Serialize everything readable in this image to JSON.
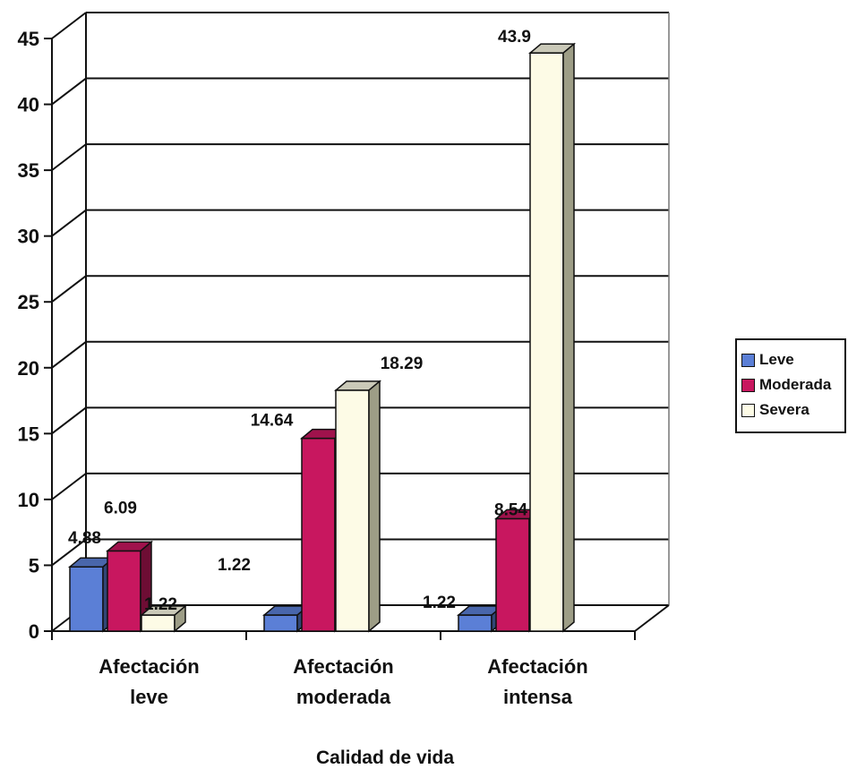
{
  "chart_data": {
    "type": "bar",
    "title": "",
    "xlabel": "Calidad de vida",
    "ylabel": "",
    "ylim": [
      0,
      45
    ],
    "yticks": [
      0,
      5,
      10,
      15,
      20,
      25,
      30,
      35,
      40,
      45
    ],
    "grid": true,
    "legend_position": "right",
    "categories": [
      [
        "Afectación",
        "leve"
      ],
      [
        "Afectación",
        "moderada"
      ],
      [
        "Afectación",
        "intensa"
      ]
    ],
    "series": [
      {
        "name": "Leve",
        "color": "#5b7fd6",
        "values": [
          4.88,
          1.22,
          1.22
        ],
        "labels": [
          "4.88",
          "1.22",
          "1.22"
        ]
      },
      {
        "name": "Moderada",
        "color": "#c8175f",
        "values": [
          6.09,
          14.64,
          8.54
        ],
        "labels": [
          "6.09",
          "14.64",
          "8.54"
        ]
      },
      {
        "name": "Severa",
        "color": "#fdfbe6",
        "values": [
          1.22,
          18.29,
          43.9
        ],
        "labels": [
          "1.22",
          "18.29",
          "43.9"
        ]
      }
    ]
  }
}
